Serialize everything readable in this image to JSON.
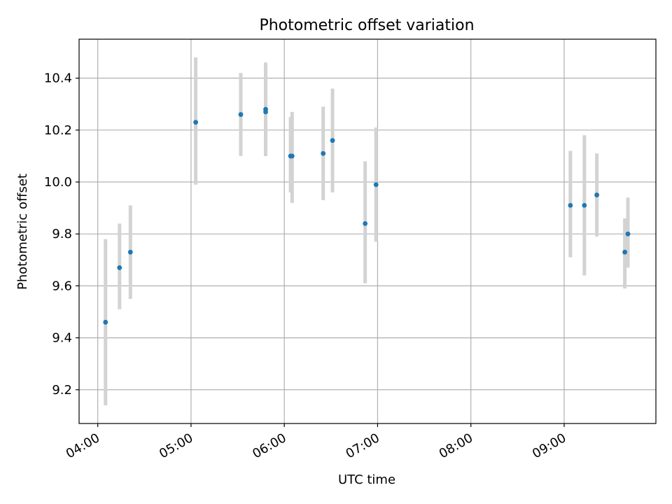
{
  "chart_data": {
    "type": "scatter",
    "title": "Photometric offset variation",
    "xlabel": "UTC time",
    "ylabel": "Photometric offset",
    "x_tick_labels": [
      "04:00",
      "05:00",
      "06:00",
      "07:00",
      "08:00",
      "09:00"
    ],
    "x_tick_values": [
      "04:00",
      "05:00",
      "06:00",
      "07:00",
      "08:00",
      "09:00"
    ],
    "y_ticks": [
      9.2,
      9.4,
      9.6,
      9.8,
      10.0,
      10.2,
      10.4
    ],
    "y_tick_labels": [
      "9.2",
      "9.4",
      "9.6",
      "9.8",
      "10.0",
      "10.2",
      "10.4"
    ],
    "xlim": [
      "03:48",
      "09:59"
    ],
    "ylim": [
      9.07,
      10.55
    ],
    "grid": true,
    "legend": "none",
    "marker_color": "#1f77b4",
    "errorbar_color": "#d3d3d3",
    "series": [
      {
        "points": [
          {
            "x": "04:05",
            "y": 9.46,
            "ylo": 9.14,
            "yhi": 9.78
          },
          {
            "x": "04:14",
            "y": 9.67,
            "ylo": 9.51,
            "yhi": 9.84
          },
          {
            "x": "04:21",
            "y": 9.73,
            "ylo": 9.55,
            "yhi": 9.91
          },
          {
            "x": "05:03",
            "y": 10.23,
            "ylo": 9.99,
            "yhi": 10.48
          },
          {
            "x": "05:32",
            "y": 10.26,
            "ylo": 10.1,
            "yhi": 10.42
          },
          {
            "x": "05:48",
            "y": 10.28,
            "ylo": 10.1,
            "yhi": 10.46
          },
          {
            "x": "05:48",
            "y": 10.27,
            "ylo": 10.1,
            "yhi": 10.46
          },
          {
            "x": "06:04",
            "y": 10.1,
            "ylo": 9.96,
            "yhi": 10.25
          },
          {
            "x": "06:05",
            "y": 10.1,
            "ylo": 9.92,
            "yhi": 10.27
          },
          {
            "x": "06:25",
            "y": 10.11,
            "ylo": 9.93,
            "yhi": 10.29
          },
          {
            "x": "06:31",
            "y": 10.16,
            "ylo": 9.96,
            "yhi": 10.36
          },
          {
            "x": "06:52",
            "y": 9.84,
            "ylo": 9.61,
            "yhi": 10.08
          },
          {
            "x": "06:59",
            "y": 9.99,
            "ylo": 9.77,
            "yhi": 10.21
          },
          {
            "x": "09:04",
            "y": 9.91,
            "ylo": 9.71,
            "yhi": 10.12
          },
          {
            "x": "09:13",
            "y": 9.91,
            "ylo": 9.64,
            "yhi": 10.18
          },
          {
            "x": "09:21",
            "y": 9.95,
            "ylo": 9.79,
            "yhi": 10.11
          },
          {
            "x": "09:39",
            "y": 9.73,
            "ylo": 9.59,
            "yhi": 9.86
          },
          {
            "x": "09:41",
            "y": 9.8,
            "ylo": 9.67,
            "yhi": 9.94
          }
        ]
      }
    ]
  }
}
